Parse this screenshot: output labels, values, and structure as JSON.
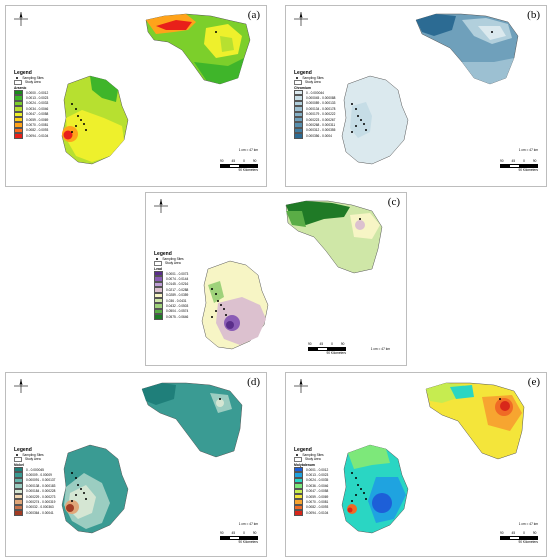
{
  "panels": [
    {
      "id": "a",
      "label": "(a)",
      "legend_title": "Legend",
      "sampling_label": "Sampling Sites",
      "area_label": "Study Area",
      "variable": "Arsenic",
      "classes": [
        {
          "range": "0.0000 - 0.0012",
          "color": "#1a8a1a"
        },
        {
          "range": "0.0013 - 0.0023",
          "color": "#3fb52a"
        },
        {
          "range": "0.0024 - 0.0033",
          "color": "#7ccf2b"
        },
        {
          "range": "0.0034 - 0.0046",
          "color": "#b7e030"
        },
        {
          "range": "0.0047 - 0.0058",
          "color": "#eef02c"
        },
        {
          "range": "0.0059 - 0.0069",
          "color": "#ffd21a"
        },
        {
          "range": "0.0070 - 0.0081",
          "color": "#ffa31a"
        },
        {
          "range": "0.0082 - 0.0093",
          "color": "#ff6a1a"
        },
        {
          "range": "0.0094 - 0.0104",
          "color": "#e8201a"
        }
      ],
      "scale_labels": [
        "90",
        "45",
        "0",
        "90"
      ],
      "scale_unit": "90 Kilometers",
      "ratio": "1 cm = 47 km"
    },
    {
      "id": "b",
      "label": "(b)",
      "legend_title": "Legend",
      "sampling_label": "Sampling Sites",
      "area_label": "Study Area",
      "variable": "Chromium",
      "classes": [
        {
          "range": "0 - 0.000044",
          "color": "#dbe9ee"
        },
        {
          "range": "0.000045 - 0.000088",
          "color": "#c6dde6"
        },
        {
          "range": "0.000089 - 0.000133",
          "color": "#b1cfdc"
        },
        {
          "range": "0.000134 - 0.000178",
          "color": "#9cc0d2"
        },
        {
          "range": "0.000179 - 0.000222",
          "color": "#86b1c7"
        },
        {
          "range": "0.000223 - 0.000267",
          "color": "#6fa0bb"
        },
        {
          "range": "0.000268 - 0.000311",
          "color": "#578fae"
        },
        {
          "range": "0.000312 - 0.000355",
          "color": "#417ea2"
        },
        {
          "range": "0.000356 - 0.0004",
          "color": "#2c6b93"
        }
      ],
      "scale_labels": [
        "90",
        "45",
        "0",
        "90"
      ],
      "scale_unit": "90 Kilometers",
      "ratio": "1 cm = 47 km"
    },
    {
      "id": "c",
      "label": "(c)",
      "legend_title": "Legend",
      "sampling_label": "Sampling Sites",
      "area_label": "Study Area",
      "variable": "Lead",
      "classes": [
        {
          "range": "0.0001 - 0.0073",
          "color": "#5a2e8a"
        },
        {
          "range": "0.0074 - 0.0144",
          "color": "#8a5cb5"
        },
        {
          "range": "0.0145 - 0.0216",
          "color": "#bfa0d6"
        },
        {
          "range": "0.0217 - 0.0288",
          "color": "#dcc1cf"
        },
        {
          "range": "0.0289 - 0.0359",
          "color": "#f7f5c5"
        },
        {
          "range": "0.036 - 0.0431",
          "color": "#cfe7a7"
        },
        {
          "range": "0.0432 - 0.0503",
          "color": "#9fd27b"
        },
        {
          "range": "0.0504 - 0.0574",
          "color": "#5aad46"
        },
        {
          "range": "0.0575 - 0.0646",
          "color": "#1f7a26"
        }
      ],
      "scale_labels": [
        "90",
        "45",
        "0",
        "90"
      ],
      "scale_unit": "90 Kilometers",
      "ratio": "1 cm = 47 km"
    },
    {
      "id": "d",
      "label": "(d)",
      "legend_title": "Legend",
      "sampling_label": "Sampling Sites",
      "area_label": "Study Area",
      "variable": "Nickel",
      "classes": [
        {
          "range": "0 - 0.000045",
          "color": "#1f7f7a"
        },
        {
          "range": "0.00009 - 0.00009",
          "color": "#3a9b93"
        },
        {
          "range": "0.000091 - 0.000137",
          "color": "#66b5ab"
        },
        {
          "range": "0.000138 - 0.000183",
          "color": "#9bcdc1"
        },
        {
          "range": "0.000184 - 0.000228",
          "color": "#d5e6d3"
        },
        {
          "range": "0.000229 - 0.000273",
          "color": "#f1d6b0"
        },
        {
          "range": "0.000274 - 0.000319",
          "color": "#e0a77a"
        },
        {
          "range": "0.00032 - 0.000363",
          "color": "#c8734c"
        },
        {
          "range": "0.000364 - 0.00041",
          "color": "#a23c24"
        }
      ],
      "scale_labels": [
        "90",
        "45",
        "0",
        "90"
      ],
      "scale_unit": "90 Kilometers",
      "ratio": "1 cm = 47 km"
    },
    {
      "id": "e",
      "label": "(e)",
      "legend_title": "Legend",
      "sampling_label": "Sampling Sites",
      "area_label": "Study Area",
      "variable": "Molybdenum",
      "classes": [
        {
          "range": "0.0001 - 0.0012",
          "color": "#1d5fd8"
        },
        {
          "range": "0.0013 - 0.0023",
          "color": "#1fa3e0"
        },
        {
          "range": "0.0024 - 0.0035",
          "color": "#2ad6c3"
        },
        {
          "range": "0.0036 - 0.0046",
          "color": "#7de87a"
        },
        {
          "range": "0.0047 - 0.0058",
          "color": "#c6ec50"
        },
        {
          "range": "0.0059 - 0.0069",
          "color": "#f4e53a"
        },
        {
          "range": "0.0070 - 0.0081",
          "color": "#f7a530"
        },
        {
          "range": "0.0082 - 0.0093",
          "color": "#f06a25"
        },
        {
          "range": "0.0094 - 0.0104",
          "color": "#d8271a"
        }
      ],
      "scale_labels": [
        "90",
        "45",
        "0",
        "90"
      ],
      "scale_unit": "90 Kilometers",
      "ratio": "1 cm = 47 km"
    }
  ]
}
